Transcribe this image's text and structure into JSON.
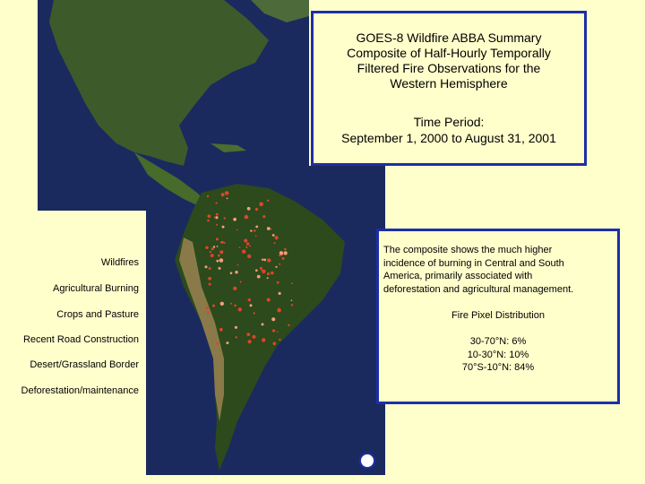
{
  "title_box": {
    "title_lines": [
      "GOES-8 Wildfire ABBA Summary",
      "Composite of Half-Hourly Temporally",
      "Filtered Fire Observations for the",
      "Western Hemisphere"
    ],
    "time_period_label": "Time Period:",
    "time_period": "September 1, 2000 to August 31, 2001"
  },
  "legend": {
    "items": [
      "Wildfires",
      "Agricultural Burning",
      "Crops and Pasture",
      "Recent Road Construction",
      "Desert/Grassland Border",
      "Deforestation/maintenance"
    ]
  },
  "info_box": {
    "description_lines": [
      "The composite shows the much higher",
      "incidence of burning in Central and South",
      "America, primarily associated with",
      "deforestation and agricultural management."
    ],
    "distribution_title": "Fire Pixel Distribution",
    "distribution": [
      "30-70°N: 6%",
      "10-30°N: 10%",
      "70°S-10°N: 84%"
    ]
  }
}
